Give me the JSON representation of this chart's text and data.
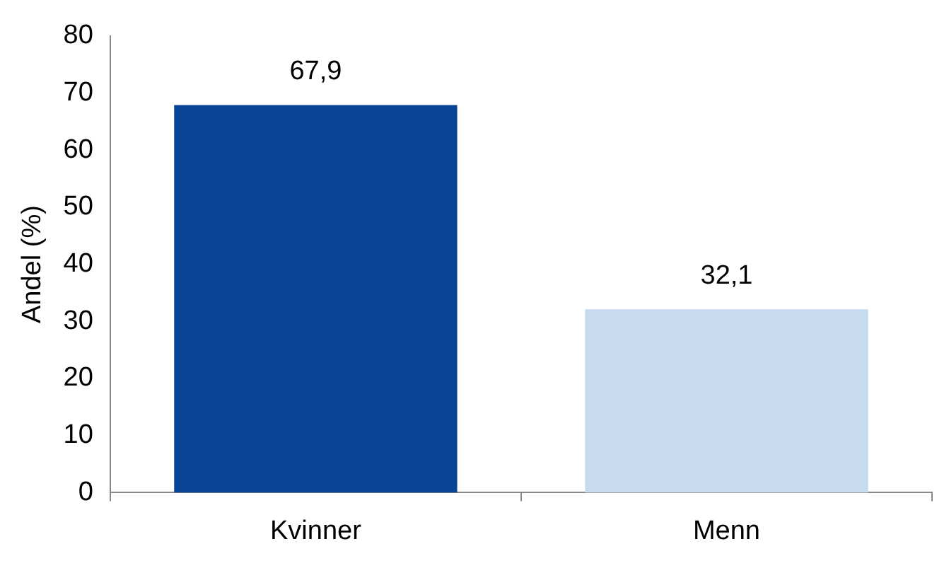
{
  "chart_data": {
    "type": "bar",
    "ylabel": "Andel (%)",
    "categories": [
      "Kvinner",
      "Menn"
    ],
    "values": [
      67.9,
      32.1
    ],
    "colors": [
      "#0a4595",
      "#c6daf0"
    ],
    "value_labels": [
      "67,9",
      "32,1"
    ],
    "ylim": [
      0,
      80
    ],
    "yticks": [
      0,
      10,
      20,
      30,
      40,
      50,
      60,
      70,
      80
    ],
    "grid": false,
    "legend": false
  }
}
